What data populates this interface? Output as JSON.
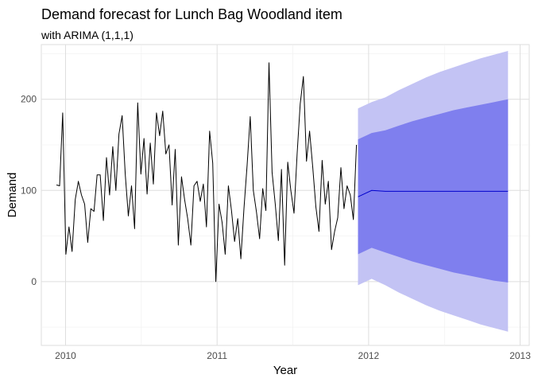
{
  "chart_data": {
    "type": "line",
    "title": "Demand forecast for Lunch Bag Woodland item",
    "subtitle": "with ARIMA (1,1,1)",
    "xlabel": "Year",
    "ylabel": "Demand",
    "xlim": [
      2009.84,
      2013.06
    ],
    "ylim": [
      -70,
      260
    ],
    "x_ticks": [
      2010,
      2011,
      2012,
      2013
    ],
    "x_tick_labels": [
      "2010",
      "2011",
      "2012",
      "2013"
    ],
    "y_ticks": [
      0,
      100,
      200
    ],
    "y_tick_labels": [
      "0",
      "100",
      "200"
    ],
    "grid": true,
    "colors": {
      "series": "#000000",
      "forecast": "#0000cc",
      "band_80": "#7f7fee",
      "band_95": "#c3c3f4",
      "grid": "#dedede",
      "panel_border": "#dedede"
    },
    "series": [
      {
        "kind": "observed",
        "start": 2009.94,
        "end": 2011.92,
        "values": [
          106,
          105,
          185,
          30,
          60,
          33,
          90,
          110,
          95,
          85,
          43,
          80,
          77,
          117,
          117,
          67,
          136,
          95,
          148,
          100,
          162,
          182,
          118,
          72,
          105,
          58,
          196,
          118,
          157,
          96,
          152,
          107,
          185,
          160,
          187,
          140,
          150,
          84,
          145,
          40,
          115,
          90,
          69,
          40,
          105,
          110,
          88,
          107,
          60,
          165,
          130,
          0,
          85,
          65,
          30,
          105,
          78,
          44,
          69,
          25,
          80,
          128,
          181,
          100,
          76,
          47,
          102,
          78,
          240,
          120,
          85,
          45,
          123,
          18,
          131,
          100,
          75,
          140,
          195,
          225,
          132,
          165,
          125,
          82,
          55,
          133,
          85,
          110,
          35,
          55,
          70,
          125,
          80,
          105,
          95,
          68,
          150
        ]
      },
      {
        "kind": "forecast",
        "start": 2011.93,
        "end": 2012.92,
        "mean": [
          93,
          100,
          99,
          99,
          99,
          99,
          99,
          99,
          99,
          99,
          99,
          99
        ],
        "lo80": [
          30,
          37,
          32,
          27,
          22,
          18,
          14,
          10,
          7,
          4,
          1,
          -1
        ],
        "hi80": [
          156,
          163,
          166,
          171,
          176,
          180,
          184,
          188,
          191,
          194,
          197,
          200
        ],
        "lo95": [
          -4,
          3,
          -4,
          -12,
          -19,
          -26,
          -32,
          -37,
          -42,
          -47,
          -51,
          -55
        ],
        "hi95": [
          190,
          197,
          202,
          210,
          217,
          224,
          230,
          235,
          240,
          245,
          249,
          253
        ]
      }
    ]
  }
}
